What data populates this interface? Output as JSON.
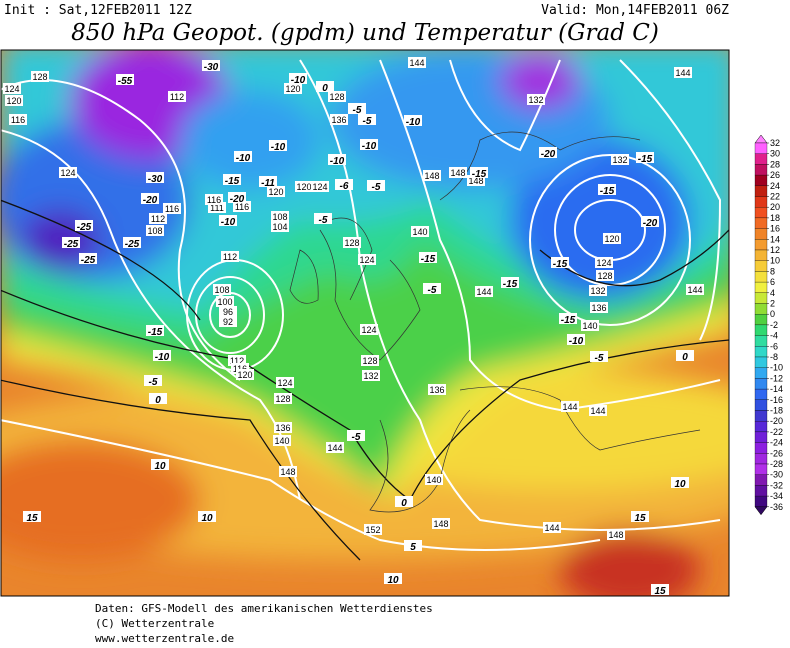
{
  "header": {
    "init": "Init : Sat,12FEB2011 12Z",
    "valid": "Valid: Mon,14FEB2011 06Z",
    "title": "850 hPa Geopot. (gpdm) und Temperatur (Grad C)"
  },
  "colorbar": {
    "labels": [
      32,
      30,
      28,
      26,
      24,
      22,
      20,
      18,
      16,
      14,
      12,
      10,
      8,
      6,
      4,
      2,
      0,
      -2,
      -4,
      -6,
      -8,
      -10,
      -12,
      -14,
      -16,
      -18,
      -20,
      -22,
      -24,
      -26,
      -28,
      -30,
      -32,
      -34,
      -36
    ]
  },
  "map": {
    "geopotential_labels": [
      128,
      124,
      120,
      116,
      112,
      124,
      116,
      112,
      108,
      112,
      108,
      100,
      96,
      92,
      112,
      116,
      120,
      124,
      128,
      136,
      140,
      148,
      144,
      140,
      152,
      148,
      144,
      148,
      144,
      144,
      132,
      132,
      120,
      124,
      128,
      132,
      136,
      140,
      144,
      148,
      148,
      148,
      140,
      144,
      136,
      144,
      144,
      128,
      124,
      124,
      128,
      132,
      120,
      128,
      136,
      120,
      116,
      111,
      116,
      108,
      104,
      120,
      124
    ],
    "temperature_labels": [
      -55,
      -30,
      -30,
      -20,
      -25,
      -25,
      -25,
      -25,
      -15,
      -10,
      -5,
      0,
      -5,
      0,
      10,
      10,
      15,
      10,
      15,
      15,
      10,
      5,
      -20,
      -15,
      -15,
      -20,
      -15,
      -15,
      -10,
      -5,
      0,
      -15,
      -15,
      -5,
      -15,
      -10,
      -10,
      -10,
      -6,
      -5,
      -5,
      0,
      -10,
      -5,
      -10,
      -10,
      -15,
      -20,
      -11,
      -10,
      -5
    ]
  },
  "footer": {
    "line1": "Daten: GFS-Modell des amerikanischen Wetterdienstes",
    "line2": "(C) Wetterzentrale",
    "line3": "www.wetterzentrale.de"
  }
}
